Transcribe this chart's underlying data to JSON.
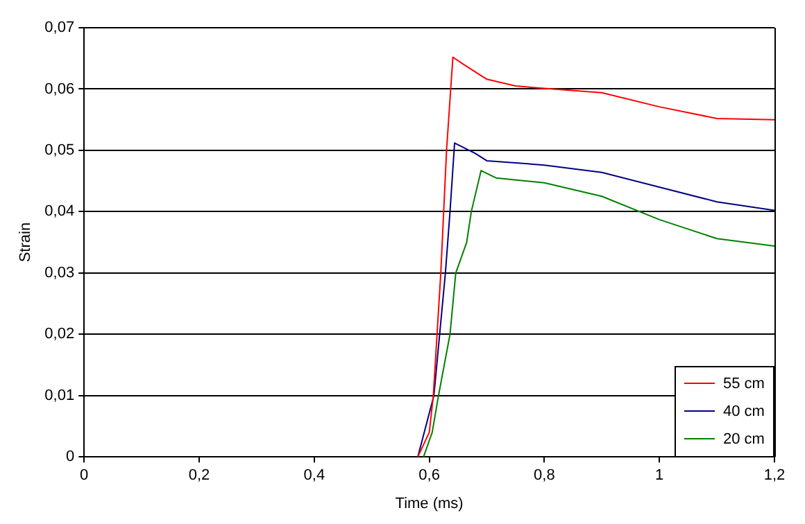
{
  "chart_data": {
    "type": "line",
    "xlabel": "Time (ms)",
    "ylabel": "Strain",
    "xlim": [
      0,
      1.2
    ],
    "xticks": [
      0,
      {
        "value": 0.2,
        "label": "0,2"
      },
      {
        "value": 0.4,
        "label": "0,4"
      },
      {
        "value": 0.6,
        "label": "0,6"
      },
      {
        "value": 0.8,
        "label": "0,8"
      },
      1,
      {
        "value": 1.2,
        "label": "1,2"
      }
    ],
    "ylim": [
      0,
      0.07
    ],
    "yticks": [
      0,
      {
        "value": 0.01,
        "label": "0,01"
      },
      {
        "value": 0.02,
        "label": "0,02"
      },
      {
        "value": 0.03,
        "label": "0,03"
      },
      {
        "value": 0.04,
        "label": "0,04"
      },
      {
        "value": 0.05,
        "label": "0,05"
      },
      {
        "value": 0.06,
        "label": "0,06"
      },
      {
        "value": 0.07,
        "label": "0,07"
      }
    ],
    "grid": "y",
    "legend": "bottom right",
    "series": [
      {
        "name": "55 cm",
        "color": "#ff0000",
        "x": [
          0.58,
          0.6,
          0.607,
          0.62,
          0.63,
          0.641,
          0.66,
          0.7,
          0.75,
          0.8,
          0.9,
          1.0,
          1.1,
          1.2
        ],
        "values": [
          0,
          0.004,
          0.01,
          0.03,
          0.05,
          0.0652,
          0.064,
          0.0616,
          0.0605,
          0.0601,
          0.0594,
          0.0571,
          0.0552,
          0.055
        ]
      },
      {
        "name": "40 cm",
        "color": "#000080",
        "x": [
          0.58,
          0.608,
          0.628,
          0.636,
          0.644,
          0.68,
          0.7,
          0.8,
          0.9,
          1.0,
          1.1,
          1.2
        ],
        "values": [
          0,
          0.01,
          0.03,
          0.04,
          0.0512,
          0.0495,
          0.0483,
          0.0476,
          0.0464,
          0.044,
          0.0416,
          0.0402
        ]
      },
      {
        "name": "20 cm",
        "color": "#008000",
        "x": [
          0.59,
          0.605,
          0.616,
          0.636,
          0.646,
          0.665,
          0.673,
          0.69,
          0.716,
          0.8,
          0.9,
          1.0,
          1.1,
          1.2
        ],
        "values": [
          0,
          0.004,
          0.01,
          0.02,
          0.03,
          0.035,
          0.04,
          0.0467,
          0.0455,
          0.0447,
          0.0425,
          0.0387,
          0.0356,
          0.0344
        ]
      }
    ]
  }
}
